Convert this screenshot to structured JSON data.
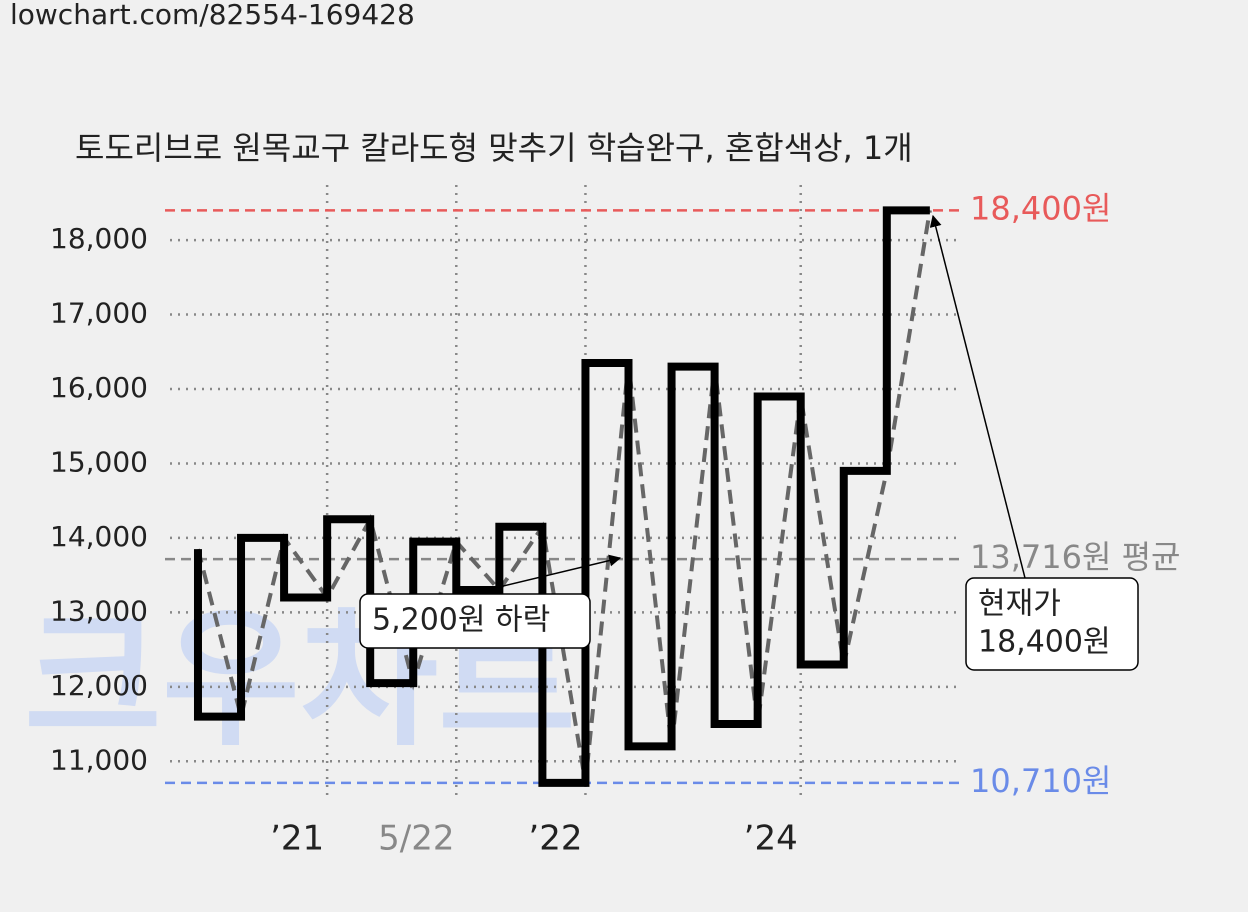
{
  "url": "lowchart.com/82554-169428",
  "chart_data": {
    "type": "step",
    "title": "토도리브로 원목교구 칼라도형 맞추기 학습완구, 혼합색상, 1개",
    "watermark": "크우차트",
    "x": [
      0,
      1,
      2,
      3,
      4,
      5,
      6,
      7,
      8,
      9,
      10,
      11,
      12,
      13,
      14,
      15,
      16,
      17
    ],
    "series": [
      {
        "color": "#000000",
        "values": [
          13850,
          11600,
          14000,
          13200,
          14250,
          12050,
          13950,
          13300,
          14150,
          10710,
          16350,
          11200,
          16300,
          11500,
          15900,
          12300,
          14900,
          18400
        ]
      }
    ],
    "trend_color": "#666666",
    "xlim": [
      -0.65,
      17.7
    ],
    "xticks": [
      {
        "value": 3,
        "label": "’21"
      },
      {
        "value": 6,
        "label": "5/22"
      },
      {
        "value": 9,
        "label": "’22"
      },
      {
        "value": 14,
        "label": "’24"
      }
    ],
    "ylim": [
      10480,
      18740
    ],
    "yticks": [
      {
        "value": 11000,
        "label": "11,000"
      },
      {
        "value": 12000,
        "label": "12,000"
      },
      {
        "value": 13000,
        "label": "13,000"
      },
      {
        "value": 14000,
        "label": "14,000"
      },
      {
        "value": 15000,
        "label": "15,000"
      },
      {
        "value": 16000,
        "label": "16,000"
      },
      {
        "value": 17000,
        "label": "17,000"
      },
      {
        "value": 18000,
        "label": "18,000"
      }
    ],
    "grid": true,
    "reference_lines": [
      {
        "value": 18400,
        "label": "18,400원",
        "color": "#e85a5a"
      },
      {
        "value": 13716,
        "label": "13,716원 평균",
        "color": "#888888"
      },
      {
        "value": 10710,
        "label": "10,710원",
        "color": "#6a8be8"
      }
    ],
    "annotations": [
      {
        "lines": [
          "5,200원 하락"
        ]
      },
      {
        "lines": [
          "현재가",
          "18,400원"
        ]
      }
    ]
  }
}
